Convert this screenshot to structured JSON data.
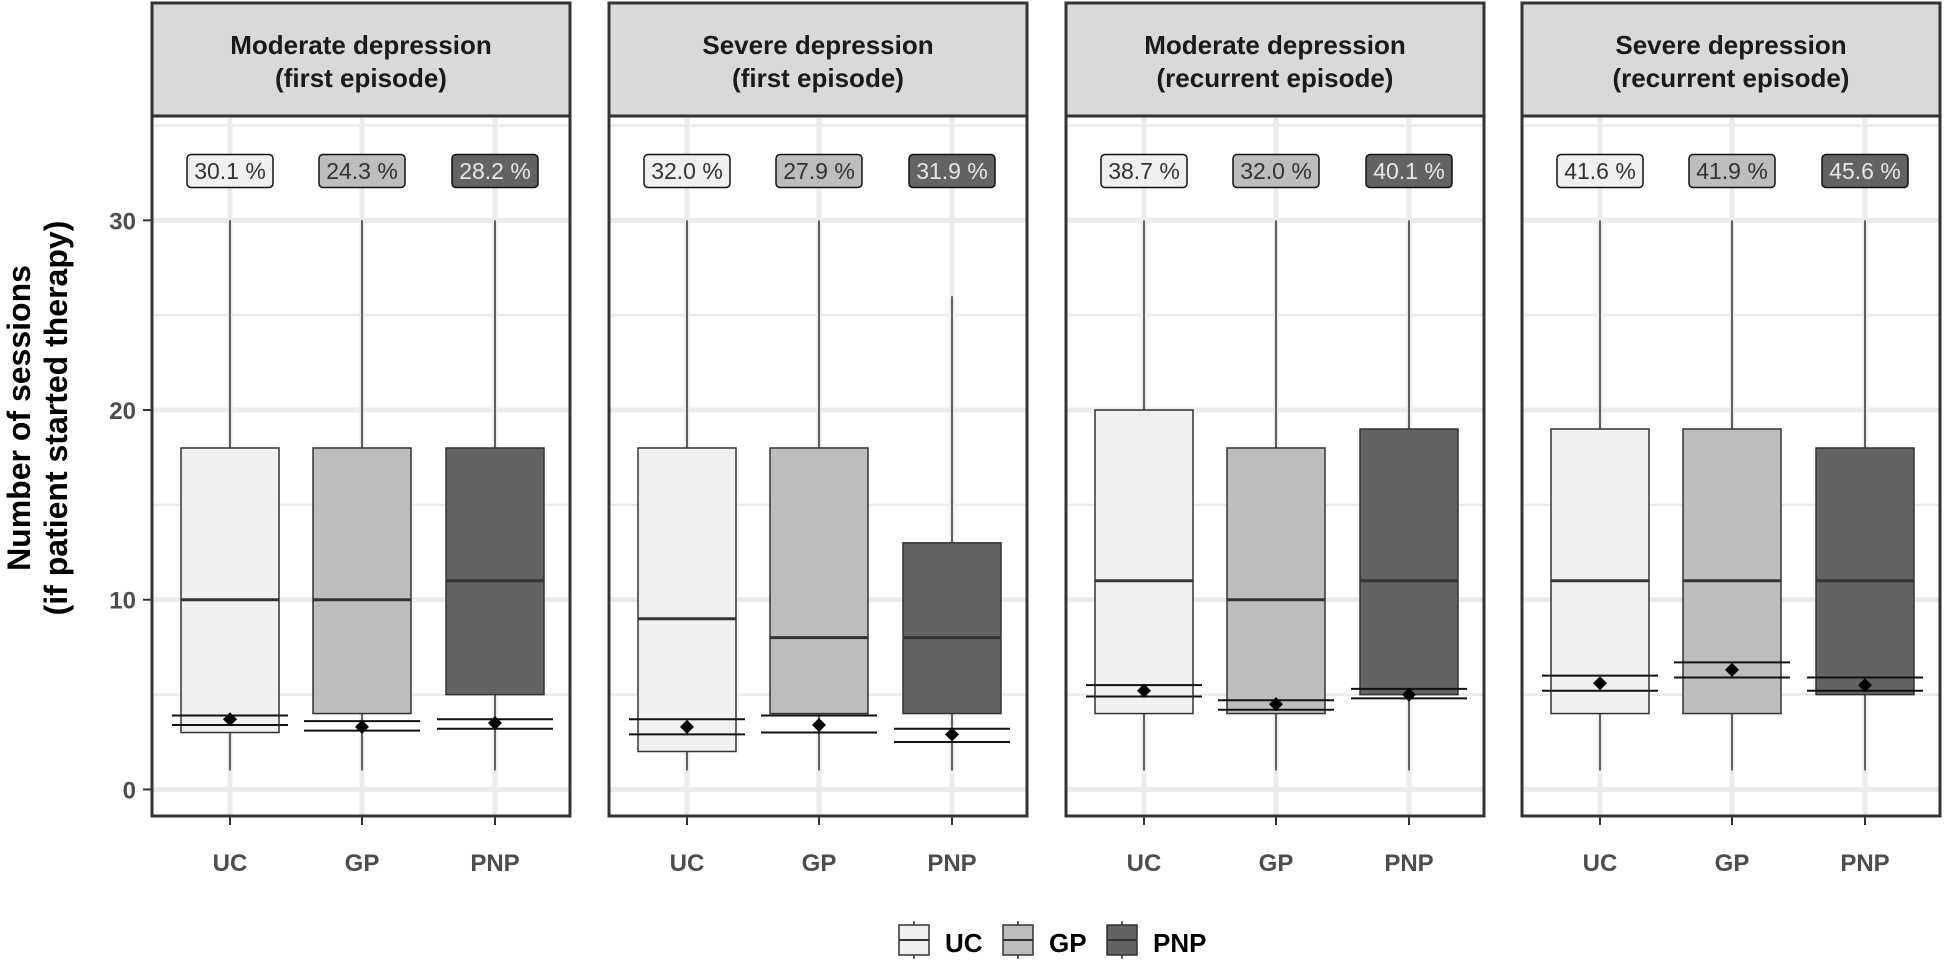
{
  "chart_data": {
    "type": "boxplot",
    "ylabel_line1": "Number of sessions",
    "ylabel_line2": "(if patient started therapy)",
    "ylim": [
      -1.4,
      35.5
    ],
    "yticks": [
      0,
      10,
      20,
      30
    ],
    "ytick_labels": [
      "0",
      "10",
      "20",
      "30"
    ],
    "categories": [
      "UC",
      "GP",
      "PNP"
    ],
    "colors": {
      "UC": "#f0f0f0",
      "GP": "#bdbdbd",
      "PNP": "#636363",
      "box_line": "#333333",
      "panel_border": "#333333",
      "strip_fill": "#d9d9d9",
      "grid": "#ebebeb",
      "mean_marker": "#000000"
    },
    "legend": {
      "items": [
        {
          "label": "UC",
          "color": "#f0f0f0"
        },
        {
          "label": "GP",
          "color": "#bdbdbd"
        },
        {
          "label": "PNP",
          "color": "#636363"
        }
      ],
      "position": "bottom"
    },
    "panels": [
      {
        "title_line1": "Moderate depression",
        "title_line2": "(first episode)",
        "groups": [
          {
            "name": "UC",
            "pct_label": "30.1 %",
            "lower_whisker": 1,
            "q1": 3,
            "median": 10,
            "q3": 18,
            "upper_whisker": 30,
            "mean": 3.7,
            "ci": [
              3.4,
              3.9
            ]
          },
          {
            "name": "GP",
            "pct_label": "24.3 %",
            "lower_whisker": 1,
            "q1": 4,
            "median": 10,
            "q3": 18,
            "upper_whisker": 30,
            "mean": 3.3,
            "ci": [
              3.1,
              3.6
            ]
          },
          {
            "name": "PNP",
            "pct_label": "28.2 %",
            "lower_whisker": 1,
            "q1": 5,
            "median": 11,
            "q3": 18,
            "upper_whisker": 30,
            "mean": 3.5,
            "ci": [
              3.2,
              3.7
            ]
          }
        ]
      },
      {
        "title_line1": "Severe depression",
        "title_line2": "(first episode)",
        "groups": [
          {
            "name": "UC",
            "pct_label": "32.0 %",
            "lower_whisker": 1,
            "q1": 2,
            "median": 9,
            "q3": 18,
            "upper_whisker": 30,
            "mean": 3.3,
            "ci": [
              2.9,
              3.7
            ]
          },
          {
            "name": "GP",
            "pct_label": "27.9 %",
            "lower_whisker": 1,
            "q1": 4,
            "median": 8,
            "q3": 18,
            "upper_whisker": 30,
            "mean": 3.4,
            "ci": [
              3.0,
              3.9
            ]
          },
          {
            "name": "PNP",
            "pct_label": "31.9 %",
            "lower_whisker": 1,
            "q1": 4,
            "median": 8,
            "q3": 13,
            "upper_whisker": 26,
            "mean": 2.9,
            "ci": [
              2.5,
              3.2
            ]
          }
        ]
      },
      {
        "title_line1": "Moderate depression",
        "title_line2": "(recurrent episode)",
        "groups": [
          {
            "name": "UC",
            "pct_label": "38.7 %",
            "lower_whisker": 1,
            "q1": 4,
            "median": 11,
            "q3": 20,
            "upper_whisker": 30,
            "mean": 5.2,
            "ci": [
              4.9,
              5.5
            ]
          },
          {
            "name": "GP",
            "pct_label": "32.0 %",
            "lower_whisker": 1,
            "q1": 4,
            "median": 10,
            "q3": 18,
            "upper_whisker": 30,
            "mean": 4.5,
            "ci": [
              4.2,
              4.7
            ]
          },
          {
            "name": "PNP",
            "pct_label": "40.1 %",
            "lower_whisker": 1,
            "q1": 5,
            "median": 11,
            "q3": 19,
            "upper_whisker": 30,
            "mean": 5.0,
            "ci": [
              4.8,
              5.3
            ]
          }
        ]
      },
      {
        "title_line1": "Severe depression",
        "title_line2": "(recurrent episode)",
        "groups": [
          {
            "name": "UC",
            "pct_label": "41.6 %",
            "lower_whisker": 1,
            "q1": 4,
            "median": 11,
            "q3": 19,
            "upper_whisker": 30,
            "mean": 5.6,
            "ci": [
              5.2,
              6.0
            ]
          },
          {
            "name": "GP",
            "pct_label": "41.9 %",
            "lower_whisker": 1,
            "q1": 4,
            "median": 11,
            "q3": 19,
            "upper_whisker": 30,
            "mean": 6.3,
            "ci": [
              5.9,
              6.7
            ]
          },
          {
            "name": "PNP",
            "pct_label": "45.6 %",
            "lower_whisker": 1,
            "q1": 5,
            "median": 11,
            "q3": 18,
            "upper_whisker": 30,
            "mean": 5.5,
            "ci": [
              5.2,
              5.9
            ]
          }
        ]
      }
    ]
  }
}
